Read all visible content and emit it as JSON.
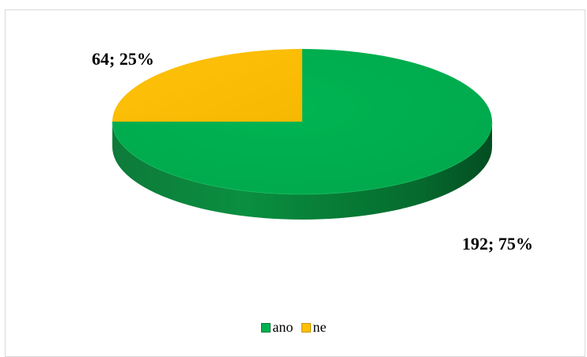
{
  "chart_data": {
    "type": "pie",
    "style": "3d",
    "title": "",
    "slices": [
      {
        "name": "ano",
        "value": 192,
        "percent": 75,
        "color": "#00b050",
        "label": "192; 75%"
      },
      {
        "name": "ne",
        "value": 64,
        "percent": 25,
        "color": "#ffc000",
        "label": "64; 25%"
      }
    ],
    "legend_position": "bottom"
  }
}
